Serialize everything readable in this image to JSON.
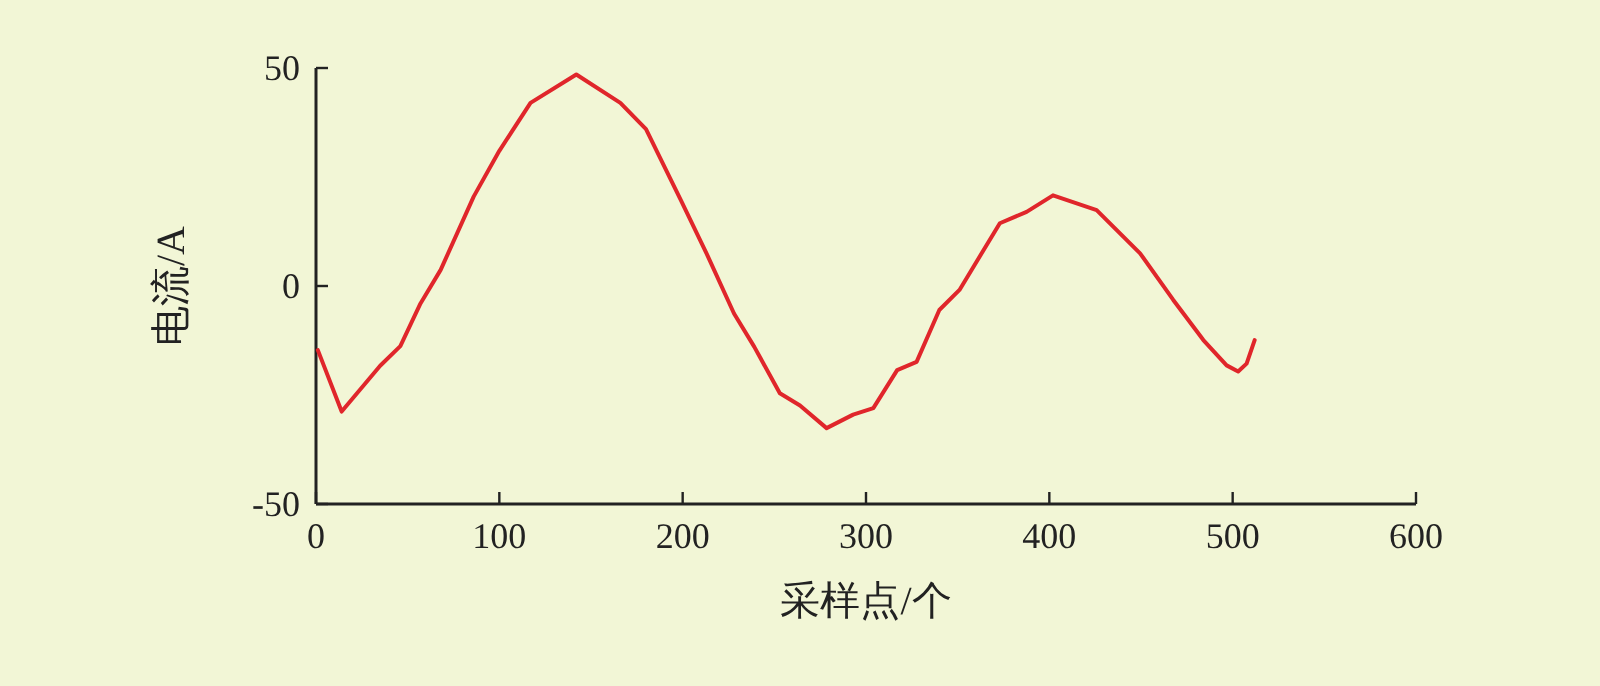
{
  "chart_data": {
    "type": "line",
    "xlabel": "采样点/个",
    "ylabel": "电流/A",
    "xlim": [
      0,
      600
    ],
    "ylim": [
      -50,
      50
    ],
    "xticks": [
      0,
      100,
      200,
      300,
      400,
      500,
      600
    ],
    "yticks": [
      -50,
      0,
      50
    ],
    "grid": false,
    "marker": "none",
    "line_style": "solid",
    "series": [
      {
        "color": "#e0262b",
        "x": [
          1,
          14,
          35,
          46,
          57,
          68,
          86,
          100,
          117,
          142,
          166,
          180,
          199,
          213,
          228,
          239,
          253,
          264,
          278.5,
          293,
          304,
          317,
          327.6,
          340,
          351,
          373,
          387.6,
          402,
          425.8,
          449.5,
          467.6,
          484,
          496.7,
          503,
          507.6,
          512
        ],
        "values": [
          -14.7,
          -28.8,
          -18.3,
          -13.8,
          -4,
          3.7,
          20.5,
          31,
          42,
          48.5,
          42,
          36,
          19.7,
          7.5,
          -6.3,
          -13.9,
          -24.6,
          -27.4,
          -32.6,
          -29.5,
          -28,
          -19.3,
          -17.4,
          -5.5,
          -0.9,
          14.4,
          17,
          20.8,
          17.4,
          7.5,
          -3.2,
          -12.4,
          -18.2,
          -19.6,
          -17.8,
          -12.4
        ]
      }
    ]
  }
}
